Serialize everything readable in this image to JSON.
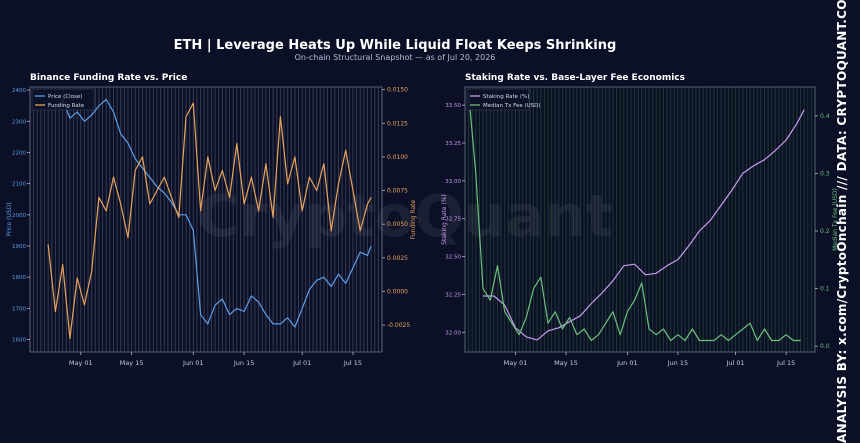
{
  "header": {
    "title": "ETH | Leverage Heats Up While Liquid Float Keeps Shrinking",
    "subtitle": "On-chain Structural Snapshot — as of Jul 20, 2026",
    "watermark": "CryptoQuant",
    "side_credit": "ANALYSIS BY: x.com/CryptoOnchain   ///   DATA: CRYPTOQUANT.COM"
  },
  "colors": {
    "background": "#0b1026",
    "price": "#5b9ee6",
    "funding": "#e8a35c",
    "staking": "#c89af0",
    "fee": "#6cc07d",
    "left_grid": "#5a5f78",
    "right_grid": "#2f5a3c"
  },
  "chart_data": [
    {
      "type": "line",
      "title": "Binance Funding Rate vs. Price",
      "xlabel": "",
      "ylabel_left": "Price (USD)",
      "ylabel_right": "Funding Rate",
      "x_ticks": [
        "May 01",
        "May 15",
        "Jun 01",
        "Jun 15",
        "Jul 01",
        "Jul 15"
      ],
      "x_range_days": [
        "2026-04-17",
        "2026-07-23"
      ],
      "y_left_ticks": [
        "1600",
        "1700",
        "1800",
        "1900",
        "2000",
        "2100",
        "2200",
        "2300",
        "2400"
      ],
      "y_left_range": [
        1560,
        2410
      ],
      "y_right_ticks": [
        "-0.0025",
        "0.0000",
        "0.0025",
        "0.0050",
        "0.0075",
        "0.0100",
        "0.0125",
        "0.0150"
      ],
      "y_right_range": [
        -0.0045,
        0.0152
      ],
      "legend": {
        "position": "top-left",
        "entries": [
          "Price (Close)",
          "Funding Rate"
        ]
      },
      "series": [
        {
          "name": "Price (Close)",
          "axis": "left",
          "x": [
            "2026-04-22",
            "2026-04-24",
            "2026-04-26",
            "2026-04-28",
            "2026-04-30",
            "2026-05-02",
            "2026-05-04",
            "2026-05-06",
            "2026-05-08",
            "2026-05-10",
            "2026-05-12",
            "2026-05-14",
            "2026-05-16",
            "2026-05-18",
            "2026-05-20",
            "2026-05-22",
            "2026-05-24",
            "2026-05-26",
            "2026-05-28",
            "2026-05-30",
            "2026-06-01",
            "2026-06-03",
            "2026-06-05",
            "2026-06-07",
            "2026-06-09",
            "2026-06-11",
            "2026-06-13",
            "2026-06-15",
            "2026-06-17",
            "2026-06-19",
            "2026-06-21",
            "2026-06-23",
            "2026-06-25",
            "2026-06-27",
            "2026-06-29",
            "2026-07-01",
            "2026-07-03",
            "2026-07-05",
            "2026-07-07",
            "2026-07-09",
            "2026-07-11",
            "2026-07-13",
            "2026-07-15",
            "2026-07-17",
            "2026-07-19",
            "2026-07-20"
          ],
          "values": [
            2360,
            2340,
            2370,
            2310,
            2330,
            2300,
            2320,
            2350,
            2370,
            2330,
            2260,
            2230,
            2180,
            2150,
            2120,
            2090,
            2070,
            2040,
            2000,
            2000,
            1950,
            1680,
            1650,
            1710,
            1730,
            1680,
            1700,
            1690,
            1740,
            1720,
            1680,
            1650,
            1650,
            1670,
            1640,
            1700,
            1760,
            1790,
            1800,
            1770,
            1810,
            1780,
            1830,
            1880,
            1870,
            1900
          ]
        },
        {
          "name": "Funding Rate",
          "axis": "right",
          "x": [
            "2026-04-22",
            "2026-04-24",
            "2026-04-26",
            "2026-04-28",
            "2026-04-30",
            "2026-05-02",
            "2026-05-04",
            "2026-05-06",
            "2026-05-08",
            "2026-05-10",
            "2026-05-12",
            "2026-05-14",
            "2026-05-16",
            "2026-05-18",
            "2026-05-20",
            "2026-05-22",
            "2026-05-24",
            "2026-05-26",
            "2026-05-28",
            "2026-05-30",
            "2026-06-01",
            "2026-06-03",
            "2026-06-05",
            "2026-06-07",
            "2026-06-09",
            "2026-06-11",
            "2026-06-13",
            "2026-06-15",
            "2026-06-17",
            "2026-06-19",
            "2026-06-21",
            "2026-06-23",
            "2026-06-25",
            "2026-06-27",
            "2026-06-29",
            "2026-07-01",
            "2026-07-03",
            "2026-07-05",
            "2026-07-07",
            "2026-07-09",
            "2026-07-11",
            "2026-07-13",
            "2026-07-15",
            "2026-07-17",
            "2026-07-19",
            "2026-07-20"
          ],
          "values": [
            0.0035,
            -0.0015,
            0.002,
            -0.0035,
            0.001,
            -0.001,
            0.0015,
            0.007,
            0.006,
            0.0085,
            0.0065,
            0.004,
            0.009,
            0.01,
            0.0065,
            0.0075,
            0.0085,
            0.007,
            0.0055,
            0.013,
            0.014,
            0.006,
            0.01,
            0.0075,
            0.009,
            0.007,
            0.011,
            0.0065,
            0.0085,
            0.006,
            0.0095,
            0.0055,
            0.013,
            0.008,
            0.01,
            0.006,
            0.0085,
            0.0075,
            0.0095,
            0.0045,
            0.008,
            0.0105,
            0.0075,
            0.0045,
            0.0065,
            0.007
          ]
        }
      ]
    },
    {
      "type": "line",
      "title": "Staking Rate vs. Base-Layer Fee Economics",
      "xlabel": "",
      "ylabel_left": "Staking Rate (%)",
      "ylabel_right": "Median Tx Fee (USD)",
      "x_ticks": [
        "May 01",
        "May 15",
        "Jun 01",
        "Jun 15",
        "Jul 01",
        "Jul 15"
      ],
      "x_range_days": [
        "2026-04-17",
        "2026-07-23"
      ],
      "y_left_ticks": [
        "32.00",
        "32.25",
        "32.50",
        "32.75",
        "33.00",
        "33.25",
        "33.50"
      ],
      "y_left_range": [
        31.87,
        33.62
      ],
      "y_right_ticks": [
        "0.0",
        "0.1",
        "0.2",
        "0.3",
        "0.4"
      ],
      "y_right_range": [
        -0.01,
        0.45
      ],
      "legend": {
        "position": "top-left",
        "entries": [
          "Staking Rate (%)",
          "Median Tx Fee (USD)"
        ]
      },
      "series": [
        {
          "name": "Staking Rate (%)",
          "axis": "left",
          "x": [
            "2026-04-22",
            "2026-04-25",
            "2026-04-28",
            "2026-05-01",
            "2026-05-04",
            "2026-05-07",
            "2026-05-10",
            "2026-05-13",
            "2026-05-16",
            "2026-05-19",
            "2026-05-22",
            "2026-05-25",
            "2026-05-28",
            "2026-05-31",
            "2026-06-03",
            "2026-06-06",
            "2026-06-09",
            "2026-06-12",
            "2026-06-15",
            "2026-06-18",
            "2026-06-21",
            "2026-06-24",
            "2026-06-27",
            "2026-06-30",
            "2026-07-03",
            "2026-07-06",
            "2026-07-09",
            "2026-07-12",
            "2026-07-15",
            "2026-07-18",
            "2026-07-20"
          ],
          "values": [
            32.24,
            32.24,
            32.18,
            32.03,
            31.97,
            31.95,
            32.01,
            32.03,
            32.07,
            32.11,
            32.19,
            32.26,
            32.34,
            32.44,
            32.45,
            32.38,
            32.39,
            32.44,
            32.48,
            32.57,
            32.67,
            32.74,
            32.84,
            32.94,
            33.05,
            33.1,
            33.14,
            33.2,
            33.27,
            33.38,
            33.47
          ]
        },
        {
          "name": "Median Tx Fee (USD)",
          "axis": "right",
          "x": [
            "2026-04-18",
            "2026-04-20",
            "2026-04-22",
            "2026-04-24",
            "2026-04-26",
            "2026-04-28",
            "2026-04-30",
            "2026-05-02",
            "2026-05-04",
            "2026-05-06",
            "2026-05-08",
            "2026-05-10",
            "2026-05-12",
            "2026-05-14",
            "2026-05-16",
            "2026-05-18",
            "2026-05-20",
            "2026-05-22",
            "2026-05-24",
            "2026-05-26",
            "2026-05-28",
            "2026-05-30",
            "2026-06-01",
            "2026-06-03",
            "2026-06-05",
            "2026-06-07",
            "2026-06-09",
            "2026-06-11",
            "2026-06-13",
            "2026-06-15",
            "2026-06-17",
            "2026-06-19",
            "2026-06-21",
            "2026-06-23",
            "2026-06-25",
            "2026-06-27",
            "2026-06-29",
            "2026-07-01",
            "2026-07-03",
            "2026-07-05",
            "2026-07-07",
            "2026-07-09",
            "2026-07-11",
            "2026-07-13",
            "2026-07-15",
            "2026-07-17",
            "2026-07-19"
          ],
          "values": [
            0.44,
            0.3,
            0.1,
            0.08,
            0.14,
            0.06,
            0.04,
            0.02,
            0.05,
            0.1,
            0.12,
            0.04,
            0.06,
            0.03,
            0.05,
            0.02,
            0.03,
            0.01,
            0.02,
            0.04,
            0.06,
            0.02,
            0.06,
            0.08,
            0.11,
            0.03,
            0.02,
            0.03,
            0.01,
            0.02,
            0.01,
            0.03,
            0.01,
            0.01,
            0.01,
            0.02,
            0.01,
            0.02,
            0.03,
            0.04,
            0.01,
            0.03,
            0.01,
            0.01,
            0.02,
            0.01,
            0.01
          ]
        }
      ]
    }
  ]
}
